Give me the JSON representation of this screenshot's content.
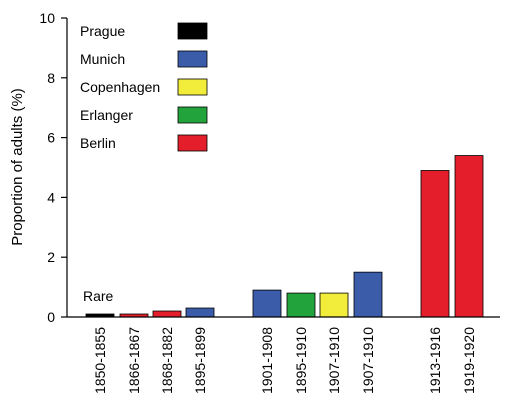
{
  "chart_data": {
    "type": "bar",
    "ylabel": "Proportion of adults (%)",
    "xlabel": "",
    "title": "",
    "ylim": [
      0,
      10
    ],
    "yticks": [
      0,
      2,
      4,
      6,
      8,
      10
    ],
    "grid": false,
    "legend_position": "top-left",
    "legend": [
      {
        "name": "Prague",
        "color": "#000000"
      },
      {
        "name": "Munich",
        "color": "#3a5ca9"
      },
      {
        "name": "Copenhagen",
        "color": "#f2ec3a"
      },
      {
        "name": "Erlanger",
        "color": "#23a33b"
      },
      {
        "name": "Berlin",
        "color": "#e41e2a"
      }
    ],
    "bars": [
      {
        "category": "1850-1855",
        "series": "Prague",
        "value": 0.1
      },
      {
        "category": "1866-1867",
        "series": "Berlin",
        "value": 0.1
      },
      {
        "category": "1868-1882",
        "series": "Berlin",
        "value": 0.2
      },
      {
        "category": "1895-1899",
        "series": "Munich",
        "value": 0.3
      },
      {
        "category": "1901-1908",
        "series": "Munich",
        "value": 0.9
      },
      {
        "category": "1895-1910",
        "series": "Erlanger",
        "value": 0.8
      },
      {
        "category": "1907-1910",
        "series": "Copenhagen",
        "value": 0.8
      },
      {
        "category": "1907-1910",
        "series": "Munich",
        "value": 1.5
      },
      {
        "category": "1913-1916",
        "series": "Berlin",
        "value": 4.9
      },
      {
        "category": "1919-1920",
        "series": "Berlin",
        "value": 5.4
      }
    ],
    "annotations": [
      {
        "text": "Rare",
        "near_category": "1850-1855"
      }
    ]
  }
}
